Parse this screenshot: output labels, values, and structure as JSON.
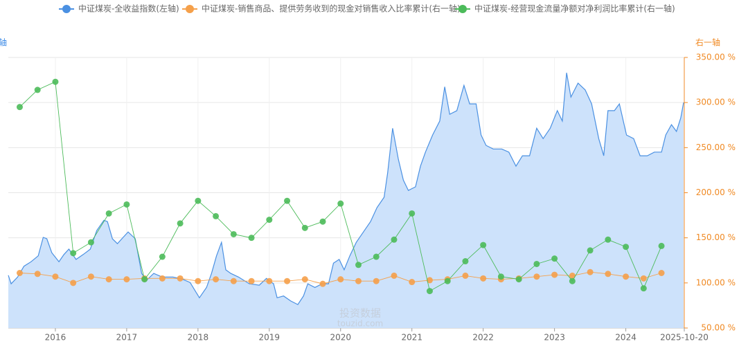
{
  "chart_data": {
    "type": "line",
    "y_label": "轴",
    "y2_label": "右一轴",
    "watermark": [
      "投资数据",
      "touzid.com"
    ],
    "grid": true,
    "legend_position": "top",
    "xlim": [
      2015.34,
      2024.82
    ],
    "xticks": [
      2016,
      2017,
      2018,
      2019,
      2020,
      2021,
      2022,
      2023,
      2024,
      {
        "value": 2024.82,
        "label": "2025-10-20"
      }
    ],
    "ylim": [
      0,
      6
    ],
    "y2lim": [
      50,
      350
    ],
    "y2ticks": [
      {
        "value": 50,
        "label": "50.00 %"
      },
      {
        "value": 100,
        "label": "100.00 %"
      },
      {
        "value": 150,
        "label": "150.00 %"
      },
      {
        "value": 200,
        "label": "200.00 %"
      },
      {
        "value": 250,
        "label": "250.00 %"
      },
      {
        "value": 300,
        "label": "300.00 %"
      },
      {
        "value": 350,
        "label": "350.00 %"
      }
    ],
    "series": [
      {
        "name": "中证煤炭-全收益指数(左轴)",
        "color": "#4a90e2",
        "fill": "#cde2fb",
        "axis": "y",
        "x": [
          2015.34,
          2015.38,
          2015.47,
          2015.56,
          2015.66,
          2015.76,
          2015.83,
          2015.88,
          2015.95,
          2016.05,
          2016.12,
          2016.19,
          2016.29,
          2016.39,
          2016.49,
          2016.58,
          2016.68,
          2016.73,
          2016.8,
          2016.87,
          2016.95,
          2017.02,
          2017.12,
          2017.21,
          2017.28,
          2017.38,
          2017.5,
          2017.65,
          2017.77,
          2017.89,
          2018.02,
          2018.12,
          2018.19,
          2018.26,
          2018.33,
          2018.39,
          2018.46,
          2018.57,
          2018.72,
          2018.86,
          2018.96,
          2019.06,
          2019.11,
          2019.2,
          2019.3,
          2019.4,
          2019.48,
          2019.54,
          2019.64,
          2019.74,
          2019.83,
          2019.9,
          2019.98,
          2020.05,
          2020.13,
          2020.22,
          2020.32,
          2020.42,
          2020.51,
          2020.61,
          2020.66,
          2020.73,
          2020.81,
          2020.88,
          2020.95,
          2021.05,
          2021.12,
          2021.19,
          2021.29,
          2021.39,
          2021.46,
          2021.53,
          2021.63,
          2021.73,
          2021.81,
          2021.9,
          2021.97,
          2022.04,
          2022.14,
          2022.26,
          2022.36,
          2022.46,
          2022.55,
          2022.65,
          2022.75,
          2022.84,
          2022.94,
          2023.04,
          2023.11,
          2023.17,
          2023.23,
          2023.33,
          2023.43,
          2023.52,
          2023.62,
          2023.69,
          2023.75,
          2023.84,
          2023.91,
          2024.01,
          2024.11,
          2024.2,
          2024.3,
          2024.4,
          2024.5,
          2024.56,
          2024.64,
          2024.71,
          2024.77,
          2024.81
        ],
        "values": [
          1.17,
          0.98,
          1.13,
          1.37,
          1.47,
          1.6,
          2.01,
          1.98,
          1.67,
          1.47,
          1.63,
          1.75,
          1.52,
          1.63,
          1.75,
          2.16,
          2.39,
          2.36,
          1.98,
          1.87,
          2.01,
          2.13,
          1.98,
          1.21,
          1.06,
          1.21,
          1.13,
          1.13,
          1.09,
          1.01,
          0.67,
          0.9,
          1.21,
          1.6,
          1.9,
          1.29,
          1.21,
          1.13,
          0.98,
          0.95,
          1.1,
          0.98,
          0.67,
          0.71,
          0.6,
          0.52,
          0.71,
          0.98,
          0.9,
          0.98,
          0.98,
          1.44,
          1.52,
          1.29,
          1.6,
          1.9,
          2.13,
          2.36,
          2.67,
          2.9,
          3.44,
          4.43,
          3.74,
          3.28,
          3.05,
          3.13,
          3.59,
          3.9,
          4.28,
          4.59,
          5.35,
          4.74,
          4.82,
          5.38,
          4.97,
          4.97,
          4.28,
          4.05,
          3.97,
          3.97,
          3.9,
          3.59,
          3.82,
          3.82,
          4.43,
          4.2,
          4.43,
          4.82,
          4.59,
          5.66,
          5.12,
          5.43,
          5.28,
          4.97,
          4.2,
          3.82,
          4.82,
          4.82,
          4.97,
          4.28,
          4.2,
          3.82,
          3.82,
          3.9,
          3.9,
          4.28,
          4.51,
          4.36,
          4.66,
          5.0
        ]
      },
      {
        "name": "中证煤炭-销售商品、提供劳务收到的现金对销售收入比率累计(右一轴)",
        "color": "#f5a04a",
        "axis": "y2",
        "x": [
          2015.5,
          2015.75,
          2016.0,
          2016.25,
          2016.5,
          2016.75,
          2017.0,
          2017.25,
          2017.5,
          2017.75,
          2018.0,
          2018.25,
          2018.5,
          2018.75,
          2019.0,
          2019.25,
          2019.5,
          2019.75,
          2020.0,
          2020.25,
          2020.5,
          2020.75,
          2021.0,
          2021.25,
          2021.5,
          2021.75,
          2022.0,
          2022.25,
          2022.5,
          2022.75,
          2023.0,
          2023.25,
          2023.5,
          2023.75,
          2024.0,
          2024.25,
          2024.5
        ],
        "values": [
          111,
          110,
          107,
          100,
          107,
          104,
          104,
          105,
          105,
          105,
          102,
          104,
          102,
          102,
          102,
          102,
          104,
          99,
          104,
          102,
          102,
          108,
          101,
          103,
          104,
          108,
          105,
          104,
          105,
          107,
          109,
          108,
          112,
          110,
          107,
          105,
          111
        ]
      },
      {
        "name": "中证煤炭-经营现金流量净额对净利润比率累计(右一轴)",
        "color": "#4cbb5a",
        "axis": "y2",
        "x": [
          2015.5,
          2015.75,
          2016.0,
          2016.25,
          2016.5,
          2016.75,
          2017.0,
          2017.25,
          2017.5,
          2017.75,
          2018.0,
          2018.25,
          2018.5,
          2018.75,
          2019.0,
          2019.25,
          2019.5,
          2019.75,
          2020.0,
          2020.25,
          2020.5,
          2020.75,
          2021.0,
          2021.25,
          2021.5,
          2021.75,
          2022.0,
          2022.25,
          2022.5,
          2022.75,
          2023.0,
          2023.25,
          2023.5,
          2023.75,
          2024.0,
          2024.25,
          2024.5
        ],
        "values": [
          295,
          314,
          323,
          133,
          145,
          177,
          187,
          104,
          129,
          166,
          191,
          174,
          154,
          150,
          170,
          191,
          161,
          168,
          188,
          120,
          129,
          148,
          177,
          91,
          102,
          124,
          142,
          107,
          104,
          121,
          127,
          102,
          136,
          148,
          140,
          94,
          141
        ]
      }
    ]
  }
}
